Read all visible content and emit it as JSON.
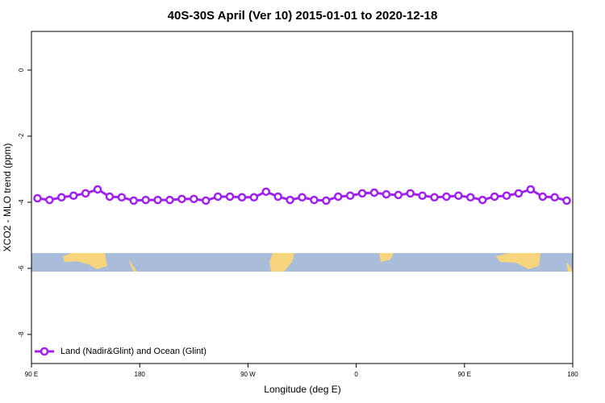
{
  "chart_data": {
    "type": "line",
    "title": "40S-30S April (Ver 10)   2015-01-01 to 2020-12-18",
    "x_label": "Longitude (deg E)",
    "y_label": "XCO2 - MLO trend (ppm)",
    "x": [
      95,
      105,
      115,
      125,
      135,
      145,
      155,
      165,
      175,
      185,
      195,
      205,
      215,
      225,
      235,
      245,
      255,
      265,
      275,
      285,
      295,
      305,
      315,
      325,
      335,
      345,
      355,
      365,
      375,
      385,
      395,
      405,
      415,
      425,
      435,
      445,
      455,
      465,
      475,
      485,
      495,
      505,
      515,
      525,
      535
    ],
    "series": [
      {
        "name": "Land (Nadir&Glint) and Ocean (Glint)",
        "color": "#a020f0",
        "values": [
          -3.88,
          -3.93,
          -3.85,
          -3.8,
          -3.73,
          -3.61,
          -3.83,
          -3.85,
          -3.95,
          -3.93,
          -3.93,
          -3.93,
          -3.9,
          -3.9,
          -3.95,
          -3.83,
          -3.83,
          -3.85,
          -3.85,
          -3.68,
          -3.83,
          -3.93,
          -3.85,
          -3.93,
          -3.95,
          -3.83,
          -3.8,
          -3.73,
          -3.71,
          -3.76,
          -3.78,
          -3.73,
          -3.8,
          -3.85,
          -3.83,
          -3.8,
          -3.85,
          -3.93,
          -3.83,
          -3.8,
          -3.73,
          -3.61,
          -3.83,
          -3.85,
          -3.95
        ]
      }
    ],
    "xlim": [
      90,
      540
    ],
    "xticks": [
      {
        "value": 90,
        "label": "90 E"
      },
      180,
      {
        "value": 270,
        "label": "90 W"
      },
      {
        "value": 360,
        "label": "0"
      },
      {
        "value": 450,
        "label": "90 E"
      },
      {
        "value": 540,
        "label": "180"
      }
    ],
    "ylim": [
      -8.88,
      1.17
    ],
    "yticks": [
      0,
      -2,
      -4,
      -6,
      -8
    ],
    "legend": "bottom-left"
  }
}
